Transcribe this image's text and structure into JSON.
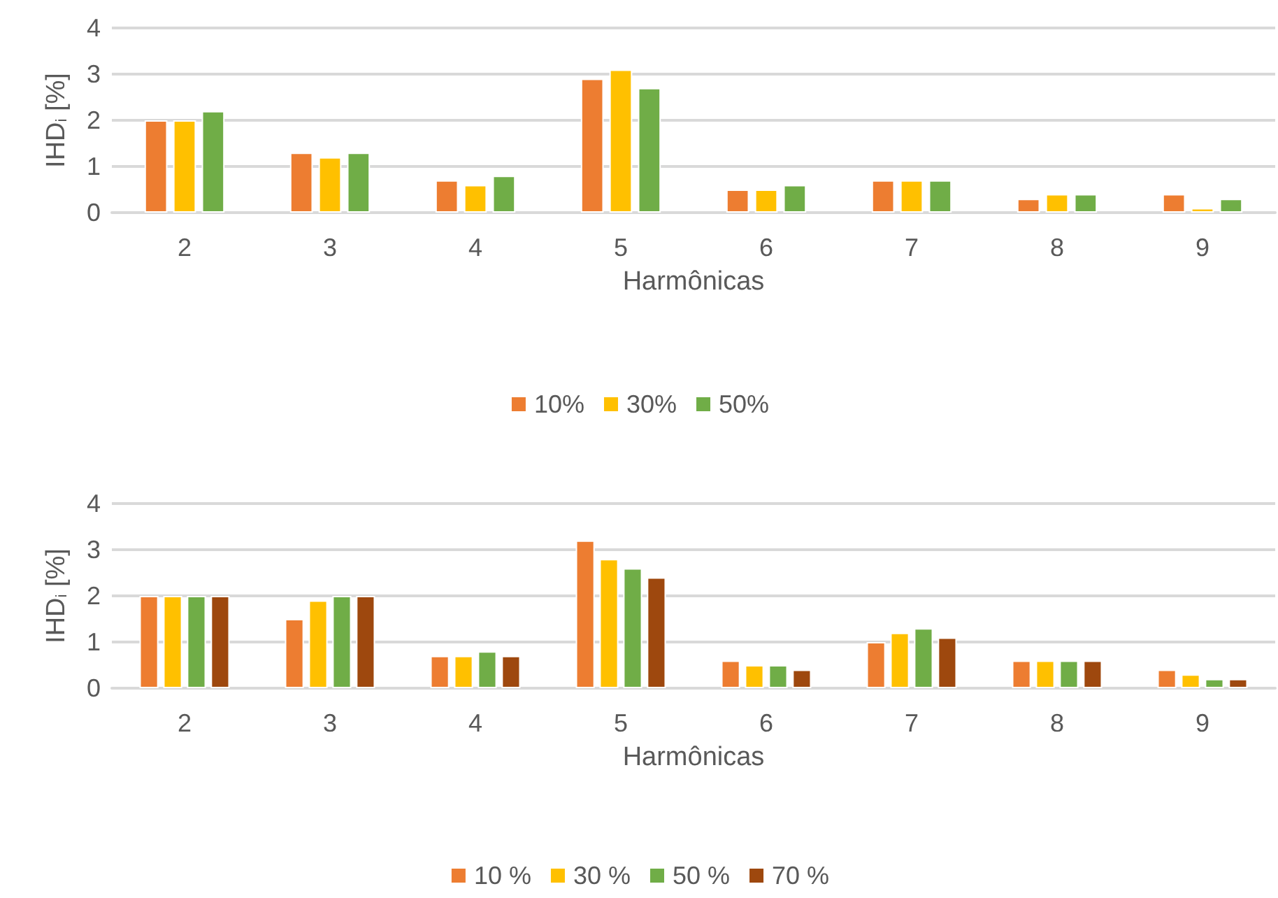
{
  "chart_data": [
    {
      "type": "bar",
      "categories": [
        "2",
        "3",
        "4",
        "5",
        "6",
        "7",
        "8",
        "9"
      ],
      "xlabel": "Harmônicas",
      "ylabel": "IHD$_{i}$ [%]",
      "ylim": [
        0,
        4
      ],
      "yticks": [
        0,
        1,
        2,
        3,
        4
      ],
      "grid": "y",
      "legend": "bottom",
      "series": [
        {
          "name": "10%",
          "color": "#ed7d31",
          "values": [
            2,
            1.3,
            0.7,
            2.9,
            0.5,
            0.7,
            0.3,
            0.4
          ]
        },
        {
          "name": "30%",
          "color": "#ffc000",
          "values": [
            2,
            1.2,
            0.6,
            3.1,
            0.5,
            0.7,
            0.4,
            0.1
          ]
        },
        {
          "name": "50%",
          "color": "#70ad47",
          "values": [
            2.2,
            1.3,
            0.8,
            2.7,
            0.6,
            0.7,
            0.4,
            0.3
          ]
        }
      ]
    },
    {
      "type": "bar",
      "categories": [
        "2",
        "3",
        "4",
        "5",
        "6",
        "7",
        "8",
        "9"
      ],
      "xlabel": "Harmônicas",
      "ylabel": "IHD$_{i}$ [%]",
      "ylim": [
        0,
        4
      ],
      "yticks": [
        0,
        1,
        2,
        3,
        4
      ],
      "grid": "y",
      "legend": "bottom",
      "series": [
        {
          "name": "10 %",
          "color": "#ed7d31",
          "values": [
            2,
            1.5,
            0.7,
            3.2,
            0.6,
            1,
            0.6,
            0.4
          ]
        },
        {
          "name": "30 %",
          "color": "#ffc000",
          "values": [
            2,
            1.9,
            0.7,
            2.8,
            0.5,
            1.2,
            0.6,
            0.3
          ]
        },
        {
          "name": "50 %",
          "color": "#70ad47",
          "values": [
            2,
            2,
            0.8,
            2.6,
            0.5,
            1.3,
            0.6,
            0.2
          ]
        },
        {
          "name": "70 %",
          "color": "#9e480e",
          "values": [
            2,
            2,
            0.7,
            2.4,
            0.4,
            1.1,
            0.6,
            0.2
          ]
        }
      ]
    }
  ]
}
